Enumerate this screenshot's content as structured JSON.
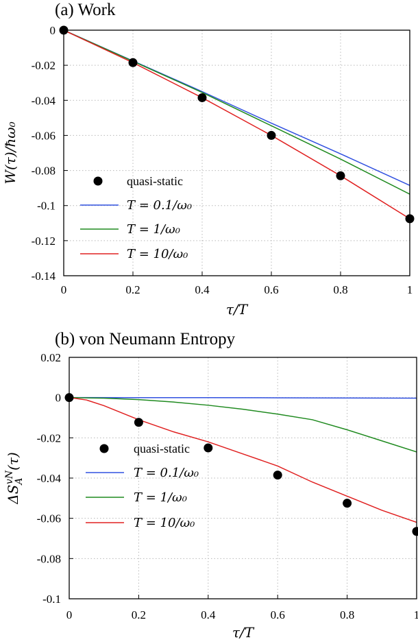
{
  "chart_data": [
    {
      "type": "line",
      "title": "(a) Work",
      "xlabel": "τ/T",
      "ylabel": "W(τ)/ħω₀",
      "xlim": [
        0,
        1
      ],
      "ylim": [
        -0.14,
        0
      ],
      "xticks": [
        "0",
        "0.2",
        "0.4",
        "0.6",
        "0.8",
        "1"
      ],
      "yticks": [
        "0",
        "-0.02",
        "-0.04",
        "-0.06",
        "-0.08",
        "-0.1",
        "-0.12",
        "-0.14"
      ],
      "grid": true,
      "legend_position": "bottom-left",
      "scatter": {
        "name": "quasi-static",
        "color": "#000000",
        "x": [
          0,
          0.2,
          0.4,
          0.6,
          0.8,
          1.0
        ],
        "y": [
          0,
          -0.0185,
          -0.0385,
          -0.06,
          -0.083,
          -0.1075
        ]
      },
      "series": [
        {
          "name": "T = 0.1/ω₀",
          "color": "#3050e0",
          "x": [
            0,
            0.2,
            0.4,
            0.6,
            0.8,
            1.0
          ],
          "y": [
            0,
            -0.0175,
            -0.035,
            -0.053,
            -0.0705,
            -0.0885
          ]
        },
        {
          "name": "T = 1/ω₀",
          "color": "#1f8a1f",
          "x": [
            0,
            0.2,
            0.4,
            0.6,
            0.8,
            1.0
          ],
          "y": [
            0,
            -0.0177,
            -0.0355,
            -0.0545,
            -0.0735,
            -0.0935
          ]
        },
        {
          "name": "T = 10/ω₀",
          "color": "#e02020",
          "x": [
            0,
            0.2,
            0.4,
            0.6,
            0.8,
            1.0
          ],
          "y": [
            0,
            -0.0185,
            -0.0385,
            -0.06,
            -0.083,
            -0.1075
          ]
        }
      ]
    },
    {
      "type": "line",
      "title": "(b) von Neumann Entropy",
      "xlabel": "τ/T",
      "ylabel": "ΔS_A^vN(τ)",
      "xlim": [
        0,
        1
      ],
      "ylim": [
        -0.1,
        0.02
      ],
      "xticks": [
        "0",
        "0.2",
        "0.4",
        "0.6",
        "0.8",
        "1"
      ],
      "yticks": [
        "0.02",
        "0",
        "-0.02",
        "-0.04",
        "-0.06",
        "-0.08",
        "-0.1"
      ],
      "grid": true,
      "legend_position": "bottom-left",
      "scatter": {
        "name": "quasi-static",
        "color": "#000000",
        "x": [
          0,
          0.2,
          0.4,
          0.6,
          0.8,
          1.0
        ],
        "y": [
          0,
          -0.0123,
          -0.025,
          -0.0385,
          -0.0525,
          -0.0665
        ]
      },
      "series": [
        {
          "name": "T = 0.1/ω₀",
          "color": "#3050e0",
          "x": [
            0,
            0.2,
            0.4,
            0.6,
            0.8,
            1.0
          ],
          "y": [
            0,
            -2e-05,
            -5e-05,
            -0.0001,
            -0.0002,
            -0.0003
          ]
        },
        {
          "name": "T = 1/ω₀",
          "color": "#1f8a1f",
          "x": [
            0,
            0.1,
            0.2,
            0.3,
            0.4,
            0.5,
            0.6,
            0.7,
            0.8,
            0.9,
            1.0
          ],
          "y": [
            0,
            -0.0003,
            -0.001,
            -0.0022,
            -0.0038,
            -0.0058,
            -0.0082,
            -0.011,
            -0.016,
            -0.0215,
            -0.027
          ]
        },
        {
          "name": "T = 10/ω₀",
          "color": "#e02020",
          "x": [
            0,
            0.05,
            0.1,
            0.2,
            0.3,
            0.4,
            0.5,
            0.6,
            0.7,
            0.8,
            0.9,
            1.0
          ],
          "y": [
            0,
            -0.0012,
            -0.004,
            -0.011,
            -0.017,
            -0.022,
            -0.028,
            -0.034,
            -0.042,
            -0.049,
            -0.056,
            -0.062
          ]
        }
      ]
    }
  ]
}
